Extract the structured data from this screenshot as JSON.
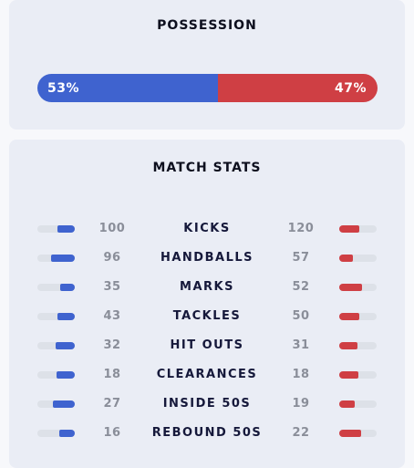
{
  "possession": {
    "title": "POSSESSION",
    "home_label": "53%",
    "away_label": "47%",
    "home_share": 0.53,
    "away_share": 0.47,
    "home_color": "#3f63cf",
    "away_color": "#cf3f44"
  },
  "match_stats": {
    "title": "MATCH STATS",
    "rows": [
      {
        "label": "KICKS",
        "home": 100,
        "away": 120
      },
      {
        "label": "HANDBALLS",
        "home": 96,
        "away": 57
      },
      {
        "label": "MARKS",
        "home": 35,
        "away": 52
      },
      {
        "label": "TACKLES",
        "home": 43,
        "away": 50
      },
      {
        "label": "HIT OUTS",
        "home": 32,
        "away": 31
      },
      {
        "label": "CLEARANCES",
        "home": 18,
        "away": 18
      },
      {
        "label": "INSIDE 50S",
        "home": 27,
        "away": 19
      },
      {
        "label": "REBOUND 50S",
        "home": 16,
        "away": 22
      }
    ]
  }
}
